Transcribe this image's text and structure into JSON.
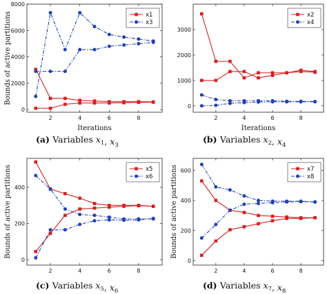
{
  "chart_data": [
    {
      "type": "line",
      "panel": "a",
      "caption_label": "(a)",
      "caption_text": "Variables x1, x3",
      "xlabel": "Iterations",
      "ylabel": "Bounds of active partitions",
      "xlim": [
        0.4,
        9.6
      ],
      "ylim": [
        -200,
        8000
      ],
      "xticks": [
        2,
        4,
        6,
        8
      ],
      "yticks": [
        0,
        2000,
        4000,
        6000,
        8000
      ],
      "legend_position": "top-right",
      "series": [
        {
          "name": "x1",
          "color": "#d62020",
          "marker": "square",
          "dash": "solid",
          "legend": true,
          "x": [
            1,
            2,
            3,
            4,
            5,
            6,
            7,
            8,
            9
          ],
          "y": [
            3050,
            850,
            850,
            700,
            650,
            600,
            600,
            600,
            580
          ]
        },
        {
          "name": "x1",
          "color": "#d62020",
          "marker": "square",
          "dash": "solid",
          "legend": false,
          "x": [
            1,
            2,
            3,
            4,
            5,
            6,
            7,
            8,
            9
          ],
          "y": [
            100,
            100,
            400,
            500,
            500,
            500,
            520,
            550,
            560
          ]
        },
        {
          "name": "x3",
          "color": "#2040b8",
          "marker": "circle",
          "dash": "dashdot",
          "legend": true,
          "x": [
            1,
            2,
            3,
            4,
            5,
            6,
            7,
            8,
            9
          ],
          "y": [
            1000,
            7350,
            4550,
            7350,
            6300,
            5700,
            5500,
            5350,
            5200
          ]
        },
        {
          "name": "x3",
          "color": "#2040b8",
          "marker": "circle",
          "dash": "dashdot",
          "legend": false,
          "x": [
            1,
            2,
            3,
            4,
            5,
            6,
            7,
            8,
            9
          ],
          "y": [
            2900,
            2900,
            2900,
            4550,
            4550,
            4800,
            4900,
            5000,
            5100
          ]
        }
      ]
    },
    {
      "type": "line",
      "panel": "b",
      "caption_label": "(b)",
      "caption_text": "Variables x2, x4",
      "xlabel": "Iterations",
      "ylabel": "",
      "xlim": [
        0.4,
        9.6
      ],
      "ylim": [
        -250,
        4000
      ],
      "xticks": [
        2,
        4,
        6,
        8
      ],
      "yticks": [
        0,
        1000,
        2000,
        3000
      ],
      "legend_position": "top-right",
      "series": [
        {
          "name": "x2",
          "color": "#d62020",
          "marker": "square",
          "dash": "solid",
          "legend": true,
          "x": [
            1,
            2,
            3,
            4,
            5,
            6,
            7,
            8,
            9
          ],
          "y": [
            3620,
            1750,
            1750,
            1100,
            1300,
            1300,
            1300,
            1400,
            1350
          ]
        },
        {
          "name": "x2",
          "color": "#d62020",
          "marker": "square",
          "dash": "solid",
          "legend": false,
          "x": [
            1,
            2,
            3,
            4,
            5,
            6,
            7,
            8,
            9
          ],
          "y": [
            1000,
            1000,
            1350,
            1350,
            1100,
            1200,
            1300,
            1350,
            1320
          ]
        },
        {
          "name": "x4",
          "color": "#2040b8",
          "marker": "circle",
          "dash": "dashdot",
          "legend": true,
          "x": [
            1,
            2,
            3,
            4,
            5,
            6,
            7,
            8,
            9
          ],
          "y": [
            430,
            250,
            200,
            200,
            200,
            200,
            180,
            180,
            170
          ]
        },
        {
          "name": "x4",
          "color": "#2040b8",
          "marker": "circle",
          "dash": "dashdot",
          "legend": false,
          "x": [
            1,
            2,
            3,
            4,
            5,
            6,
            7,
            8,
            9
          ],
          "y": [
            0,
            20,
            100,
            130,
            150,
            160,
            160,
            160,
            160
          ]
        }
      ]
    },
    {
      "type": "line",
      "panel": "c",
      "caption_label": "(c)",
      "caption_text": "Variables x5, x6",
      "xlabel": "",
      "ylabel": "Bounds of active partitions",
      "xlim": [
        0.4,
        9.6
      ],
      "ylim": [
        -30,
        560
      ],
      "xticks": [
        2,
        4,
        6,
        8
      ],
      "yticks": [
        0,
        200,
        400
      ],
      "legend_position": "top-right",
      "series": [
        {
          "name": "x5",
          "color": "#d62020",
          "marker": "square",
          "dash": "solid",
          "legend": true,
          "x": [
            1,
            2,
            3,
            4,
            5,
            6,
            7,
            8,
            9
          ],
          "y": [
            540,
            390,
            365,
            340,
            310,
            300,
            300,
            300,
            295
          ]
        },
        {
          "name": "x5",
          "color": "#d62020",
          "marker": "square",
          "dash": "solid",
          "legend": false,
          "x": [
            1,
            2,
            3,
            4,
            5,
            6,
            7,
            8,
            9
          ],
          "y": [
            45,
            145,
            245,
            280,
            285,
            290,
            295,
            298,
            295
          ]
        },
        {
          "name": "x6",
          "color": "#2040b8",
          "marker": "circle",
          "dash": "dashdot",
          "legend": true,
          "x": [
            1,
            2,
            3,
            4,
            5,
            6,
            7,
            8,
            9
          ],
          "y": [
            465,
            390,
            280,
            250,
            245,
            235,
            225,
            225,
            225
          ]
        },
        {
          "name": "x6",
          "color": "#2040b8",
          "marker": "circle",
          "dash": "dashdot",
          "legend": false,
          "x": [
            1,
            2,
            3,
            4,
            5,
            6,
            7,
            8,
            9
          ],
          "y": [
            10,
            165,
            165,
            195,
            215,
            220,
            218,
            220,
            228
          ]
        }
      ]
    },
    {
      "type": "line",
      "panel": "d",
      "caption_label": "(d)",
      "caption_text": "Variables x7, x8",
      "xlabel": "",
      "ylabel": "Bounds of active partitions",
      "xlim": [
        0.4,
        9.6
      ],
      "ylim": [
        -30,
        680
      ],
      "xticks": [
        2,
        4,
        6,
        8
      ],
      "yticks": [
        0,
        200,
        400,
        600
      ],
      "legend_position": "top-right",
      "series": [
        {
          "name": "x7",
          "color": "#d62020",
          "marker": "square",
          "dash": "solid",
          "legend": true,
          "x": [
            1,
            2,
            3,
            4,
            5,
            6,
            7,
            8,
            9
          ],
          "y": [
            530,
            400,
            335,
            320,
            300,
            295,
            290,
            285,
            285
          ]
        },
        {
          "name": "x7",
          "color": "#d62020",
          "marker": "square",
          "dash": "solid",
          "legend": false,
          "x": [
            1,
            2,
            3,
            4,
            5,
            6,
            7,
            8,
            9
          ],
          "y": [
            35,
            130,
            205,
            225,
            245,
            265,
            280,
            280,
            285
          ]
        },
        {
          "name": "x8",
          "color": "#2040b8",
          "marker": "circle",
          "dash": "dashdot",
          "legend": true,
          "x": [
            1,
            2,
            3,
            4,
            5,
            6,
            7,
            8,
            9
          ],
          "y": [
            640,
            490,
            470,
            430,
            400,
            395,
            395,
            395,
            390
          ]
        },
        {
          "name": "x8",
          "color": "#2040b8",
          "marker": "circle",
          "dash": "dashdot",
          "legend": false,
          "x": [
            1,
            2,
            3,
            4,
            5,
            6,
            7,
            8,
            9
          ],
          "y": [
            150,
            240,
            335,
            375,
            380,
            385,
            390,
            392,
            390
          ]
        }
      ]
    }
  ]
}
